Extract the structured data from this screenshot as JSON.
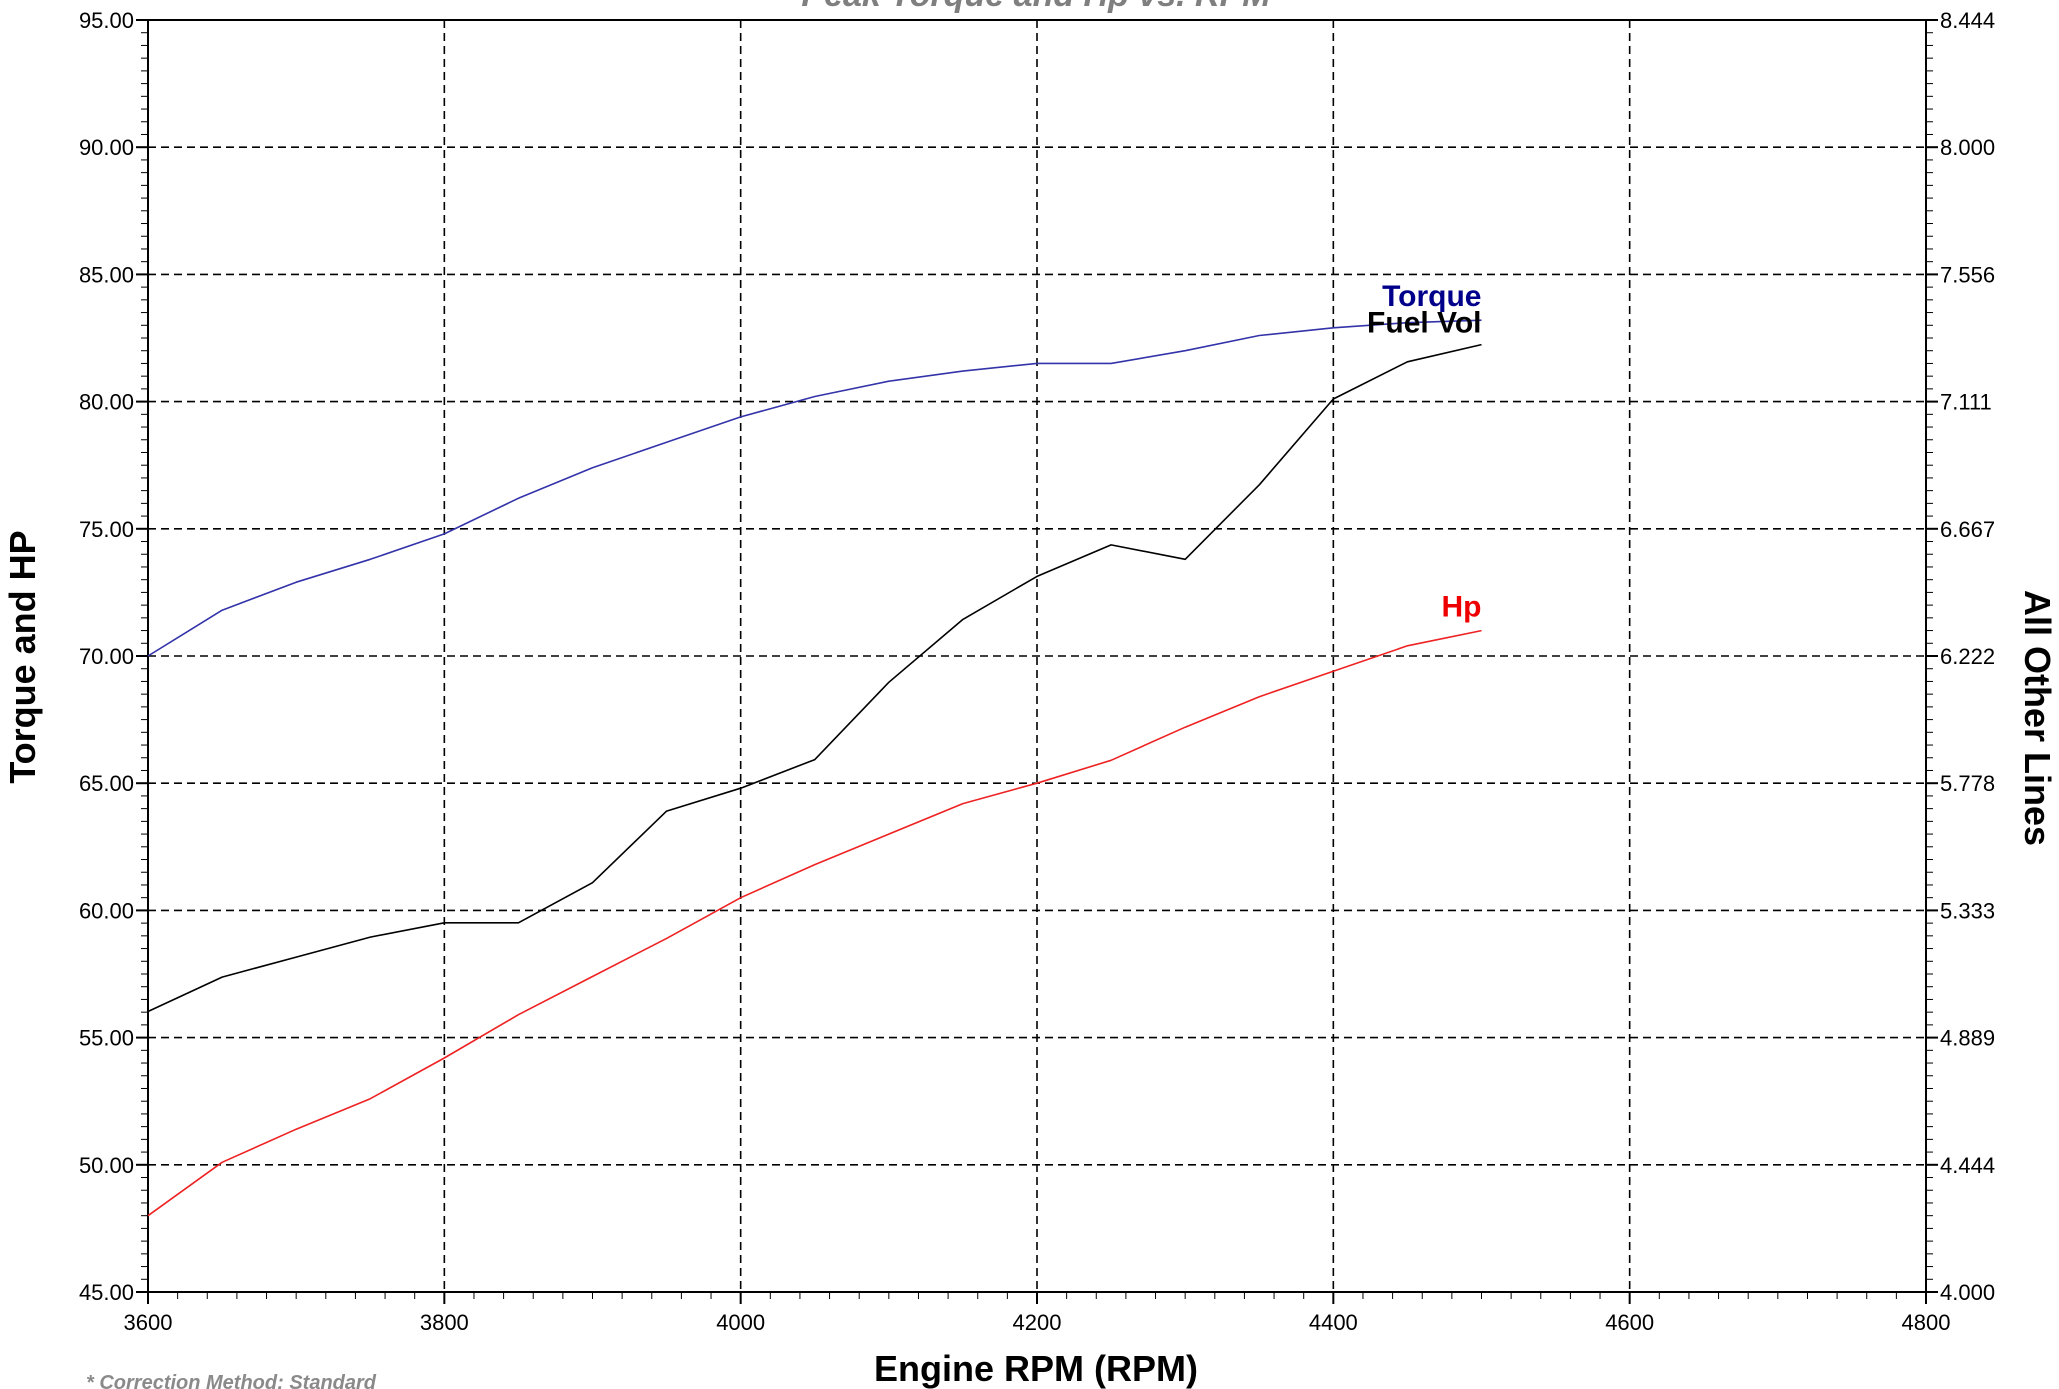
{
  "chart_data": {
    "type": "line",
    "title": "Peak Torque and Hp vs. RPM",
    "xlabel": "Engine RPM (RPM)",
    "ylabel_left": "Torque and HP",
    "ylabel_right": "All Other Lines",
    "footnote": "* Correction Method: Standard",
    "xlim": [
      3600,
      4800
    ],
    "ylim_left": [
      45,
      95
    ],
    "ylim_right": [
      4.0,
      8.444
    ],
    "x_ticks": [
      "3600",
      "3800",
      "4000",
      "4200",
      "4400",
      "4600",
      "4800"
    ],
    "y_ticks_left": [
      "45.00",
      "50.00",
      "55.00",
      "60.00",
      "65.00",
      "70.00",
      "75.00",
      "80.00",
      "85.00",
      "90.00",
      "95.00"
    ],
    "y_ticks_right": [
      "4.000",
      "4.444",
      "4.889",
      "5.333",
      "5.778",
      "6.222",
      "6.667",
      "7.111",
      "7.556",
      "8.000",
      "8.444"
    ],
    "grid": true,
    "x": [
      3600,
      3650,
      3700,
      3750,
      3800,
      3850,
      3900,
      3950,
      4000,
      4050,
      4100,
      4150,
      4200,
      4250,
      4300,
      4350,
      4400,
      4450,
      4500
    ],
    "series": [
      {
        "name": "Torque",
        "axis": "left",
        "color": "#3333aa",
        "label_color": "#00008b",
        "values": [
          70.0,
          71.8,
          72.9,
          73.8,
          74.8,
          76.2,
          77.4,
          78.4,
          79.4,
          80.2,
          80.8,
          81.2,
          81.5,
          81.5,
          82.0,
          82.6,
          82.9,
          83.1,
          83.2
        ]
      },
      {
        "name": "Fuel Vol",
        "axis": "right",
        "color": "#000000",
        "label_color": "#000000",
        "values": [
          4.98,
          5.1,
          5.17,
          5.24,
          5.29,
          5.29,
          5.43,
          5.68,
          5.76,
          5.86,
          6.13,
          6.35,
          6.5,
          6.61,
          6.56,
          6.82,
          7.12,
          7.25,
          7.31
        ]
      },
      {
        "name": "Hp",
        "axis": "left",
        "color": "#ee2222",
        "label_color": "#ee0000",
        "values": [
          48.0,
          50.1,
          51.4,
          52.6,
          54.2,
          55.9,
          57.4,
          58.9,
          60.5,
          61.8,
          63.0,
          64.2,
          65.0,
          65.9,
          67.2,
          68.4,
          69.4,
          70.4,
          71.0
        ]
      }
    ]
  }
}
